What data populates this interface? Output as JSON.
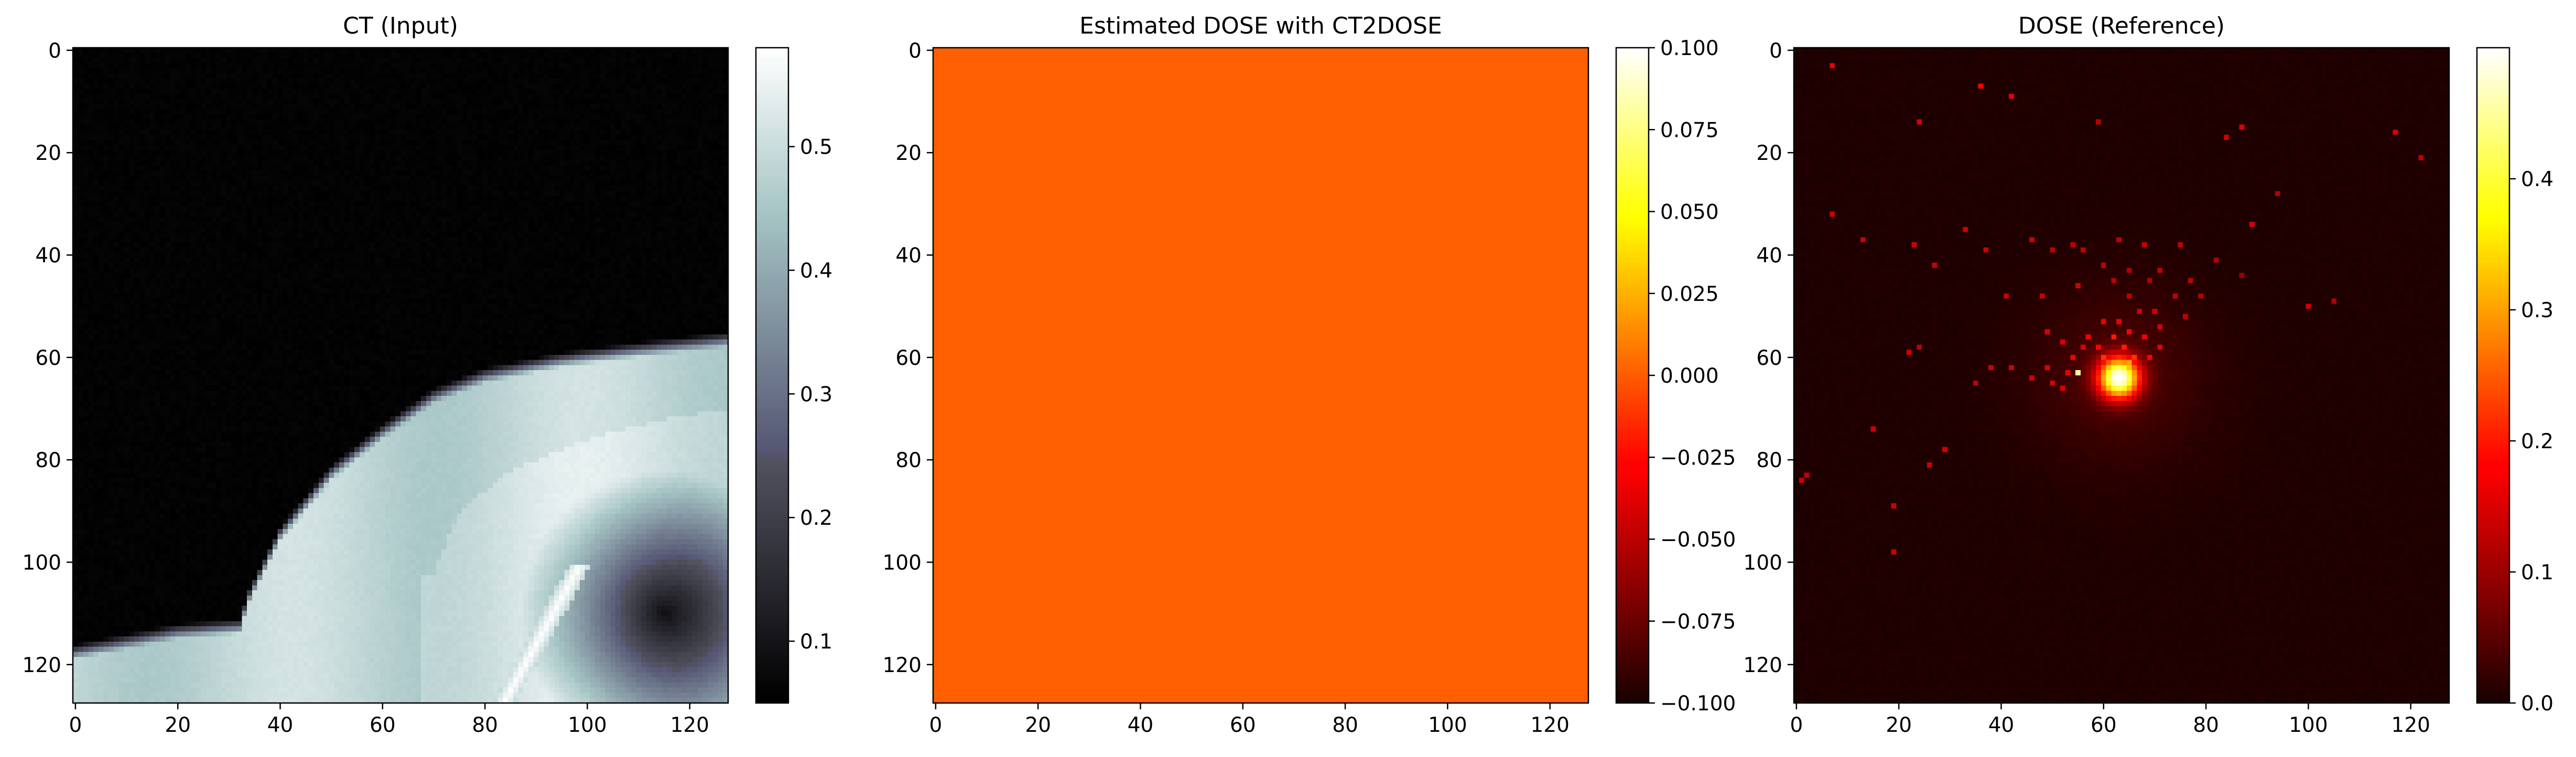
{
  "chart_data": [
    {
      "type": "heatmap",
      "title": "CT (Input)",
      "colormap": "bone",
      "x_ticks": [
        "0",
        "20",
        "40",
        "60",
        "80",
        "100",
        "120"
      ],
      "y_ticks": [
        "0",
        "20",
        "40",
        "60",
        "80",
        "100",
        "120"
      ],
      "xlim": [
        -0.5,
        127.5
      ],
      "ylim": [
        127.5,
        -0.5
      ],
      "grid_size": [
        128,
        128
      ],
      "colorbar": {
        "range": [
          0.05,
          0.58
        ],
        "ticks": [
          "0.1",
          "0.2",
          "0.3",
          "0.4",
          "0.5"
        ],
        "tick_values": [
          0.1,
          0.2,
          0.3,
          0.4,
          0.5
        ]
      },
      "content": {
        "background": 0.05,
        "tissue": 0.48,
        "bone_streak": 0.58,
        "body_outline": [
          [
            0,
            117
          ],
          [
            20,
            113
          ],
          [
            32,
            112
          ],
          [
            34,
            106
          ],
          [
            40,
            94
          ],
          [
            50,
            82
          ],
          [
            60,
            74
          ],
          [
            70,
            67
          ],
          [
            80,
            63
          ],
          [
            95,
            60
          ],
          [
            110,
            58
          ],
          [
            127,
            56
          ]
        ],
        "inner_structure_outline": [
          [
            70,
            102
          ],
          [
            75,
            90
          ],
          [
            85,
            82
          ],
          [
            100,
            76
          ],
          [
            115,
            72
          ],
          [
            127,
            70
          ]
        ],
        "dark_region": {
          "center": [
            115,
            110
          ],
          "radius": 18
        }
      }
    },
    {
      "type": "heatmap",
      "title": "Estimated DOSE with CT2DOSE",
      "colormap": "hot",
      "x_ticks": [
        "0",
        "20",
        "40",
        "60",
        "80",
        "100",
        "120"
      ],
      "y_ticks": [
        "0",
        "20",
        "40",
        "60",
        "80",
        "100",
        "120"
      ],
      "xlim": [
        -0.5,
        127.5
      ],
      "ylim": [
        127.5,
        -0.5
      ],
      "grid_size": [
        128,
        128
      ],
      "colorbar": {
        "range": [
          -0.1,
          0.1
        ],
        "ticks": [
          "0.100",
          "0.075",
          "0.050",
          "0.025",
          "0.000",
          "−0.025",
          "−0.050",
          "−0.075",
          "−0.100"
        ],
        "tick_values": [
          0.1,
          0.075,
          0.05,
          0.025,
          0.0,
          -0.025,
          -0.05,
          -0.075,
          -0.1
        ]
      },
      "content": {
        "uniform_value": 0.0,
        "color": "#FF5F00"
      }
    },
    {
      "type": "heatmap",
      "title": "DOSE (Reference)",
      "colormap": "hot",
      "x_ticks": [
        "0",
        "20",
        "40",
        "60",
        "80",
        "100",
        "120"
      ],
      "y_ticks": [
        "0",
        "20",
        "40",
        "60",
        "80",
        "100",
        "120"
      ],
      "xlim": [
        -0.5,
        127.5
      ],
      "ylim": [
        127.5,
        -0.5
      ],
      "grid_size": [
        128,
        128
      ],
      "colorbar": {
        "range": [
          0.0,
          0.5
        ],
        "ticks": [
          "0.0",
          "0.1",
          "0.2",
          "0.3",
          "0.4"
        ],
        "tick_values": [
          0.0,
          0.1,
          0.2,
          0.3,
          0.4
        ]
      },
      "content": {
        "hotspot": {
          "center": [
            63,
            64
          ],
          "peak": 0.48,
          "spread": 2.8
        },
        "scatter_points": [
          [
            7,
            3,
            0.16
          ],
          [
            36,
            7,
            0.17
          ],
          [
            42,
            9,
            0.16
          ],
          [
            24,
            14,
            0.15
          ],
          [
            59,
            14,
            0.12
          ],
          [
            87,
            15,
            0.15
          ],
          [
            117,
            16,
            0.15
          ],
          [
            84,
            17,
            0.14
          ],
          [
            122,
            21,
            0.13
          ],
          [
            94,
            28,
            0.12
          ],
          [
            7,
            32,
            0.14
          ],
          [
            89,
            34,
            0.14
          ],
          [
            33,
            35,
            0.14
          ],
          [
            13,
            37,
            0.14
          ],
          [
            23,
            38,
            0.14
          ],
          [
            46,
            37,
            0.14
          ],
          [
            54,
            38,
            0.13
          ],
          [
            63,
            37,
            0.13
          ],
          [
            68,
            38,
            0.13
          ],
          [
            75,
            38,
            0.13
          ],
          [
            37,
            39,
            0.14
          ],
          [
            50,
            39,
            0.13
          ],
          [
            56,
            39,
            0.13
          ],
          [
            27,
            42,
            0.14
          ],
          [
            60,
            42,
            0.13
          ],
          [
            65,
            43,
            0.12
          ],
          [
            71,
            43,
            0.13
          ],
          [
            82,
            41,
            0.12
          ],
          [
            62,
            45,
            0.13
          ],
          [
            69,
            45,
            0.12
          ],
          [
            77,
            45,
            0.13
          ],
          [
            55,
            46,
            0.14
          ],
          [
            41,
            48,
            0.14
          ],
          [
            48,
            48,
            0.14
          ],
          [
            65,
            48,
            0.13
          ],
          [
            74,
            48,
            0.13
          ],
          [
            79,
            48,
            0.12
          ],
          [
            100,
            50,
            0.14
          ],
          [
            105,
            49,
            0.12
          ],
          [
            87,
            44,
            0.1
          ],
          [
            67,
            51,
            0.14
          ],
          [
            70,
            51,
            0.14
          ],
          [
            76,
            52,
            0.13
          ],
          [
            60,
            53,
            0.16
          ],
          [
            63,
            53,
            0.16
          ],
          [
            71,
            54,
            0.15
          ],
          [
            49,
            55,
            0.15
          ],
          [
            65,
            55,
            0.18
          ],
          [
            57,
            56,
            0.17
          ],
          [
            62,
            56,
            0.2
          ],
          [
            68,
            56,
            0.17
          ],
          [
            52,
            57,
            0.15
          ],
          [
            59,
            58,
            0.18
          ],
          [
            64,
            58,
            0.2
          ],
          [
            71,
            58,
            0.16
          ],
          [
            56,
            58,
            0.15
          ],
          [
            54,
            60,
            0.17
          ],
          [
            60,
            60,
            0.22
          ],
          [
            66,
            60,
            0.22
          ],
          [
            69,
            60,
            0.18
          ],
          [
            62,
            61,
            0.28
          ],
          [
            65,
            61,
            0.3
          ],
          [
            22,
            59,
            0.14
          ],
          [
            24,
            58,
            0.13
          ],
          [
            38,
            62,
            0.14
          ],
          [
            42,
            62,
            0.14
          ],
          [
            49,
            62,
            0.15
          ],
          [
            53,
            63,
            0.16
          ],
          [
            55,
            63,
            0.45
          ],
          [
            46,
            64,
            0.14
          ],
          [
            50,
            65,
            0.15
          ],
          [
            52,
            66,
            0.15
          ],
          [
            15,
            74,
            0.14
          ],
          [
            29,
            78,
            0.14
          ],
          [
            26,
            81,
            0.14
          ],
          [
            1,
            84,
            0.14
          ],
          [
            2,
            83,
            0.13
          ],
          [
            19,
            89,
            0.14
          ],
          [
            19,
            98,
            0.14
          ],
          [
            35,
            65,
            0.13
          ]
        ]
      }
    }
  ]
}
